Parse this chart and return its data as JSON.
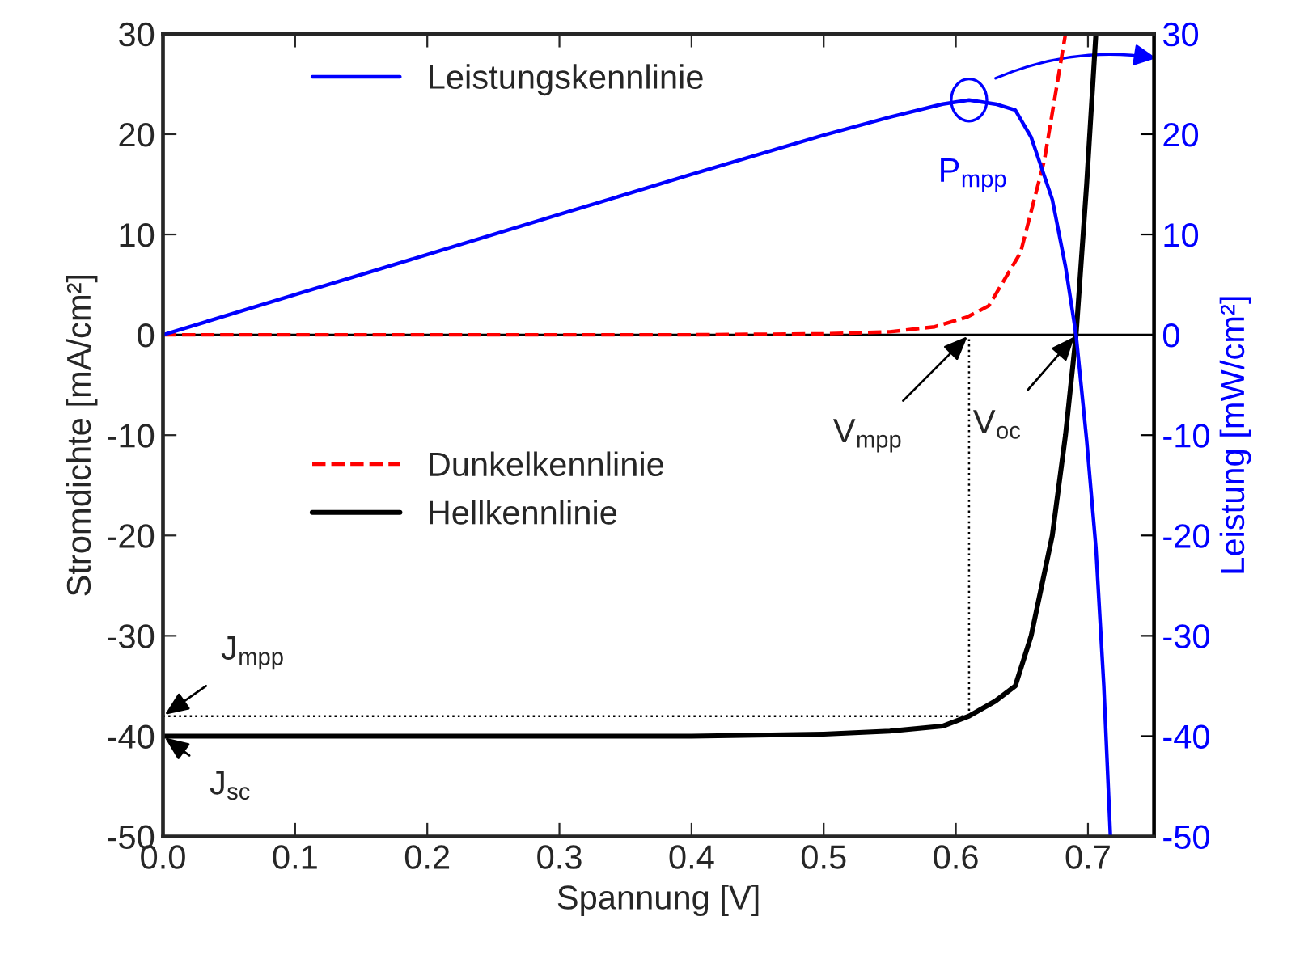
{
  "chart_data": {
    "type": "line",
    "xlabel": "Spannung [V]",
    "ylabel": "Stromdichte [mA/cm²]",
    "y2label": "Leistung [mW/cm²]",
    "series": [
      {
        "name": "Dunkelkennlinie",
        "color": "#ff0000",
        "line_style": "dashed",
        "x": [
          0.0,
          0.1,
          0.2,
          0.3,
          0.4,
          0.5,
          0.55,
          0.584,
          0.609,
          0.625,
          0.649,
          0.667,
          0.683
        ],
        "values": [
          0,
          0,
          0,
          0,
          0,
          0.1,
          0.3,
          0.8,
          1.8,
          2.9,
          8.2,
          17.4,
          30
        ]
      },
      {
        "name": "Hellkennlinie",
        "color": "#000000",
        "line_style": "solid",
        "x": [
          0.0,
          0.1,
          0.2,
          0.3,
          0.4,
          0.5,
          0.55,
          0.59,
          0.61,
          0.63,
          0.645,
          0.657,
          0.673,
          0.683,
          0.691,
          0.699,
          0.706
        ],
        "values": [
          -40,
          -40,
          -40,
          -40,
          -40,
          -39.8,
          -39.5,
          -39,
          -38,
          -36.5,
          -35,
          -30,
          -20,
          -10,
          0,
          15,
          30
        ]
      },
      {
        "name": "Leistungskennlinie",
        "color": "#0000ff",
        "line_style": "solid",
        "axis": "y2",
        "x": [
          0.0,
          0.1,
          0.2,
          0.3,
          0.4,
          0.5,
          0.55,
          0.59,
          0.61,
          0.63,
          0.645,
          0.657,
          0.673,
          0.683,
          0.691,
          0.699,
          0.706,
          0.712,
          0.717
        ],
        "values": [
          0,
          4,
          8,
          12,
          16,
          19.9,
          21.7,
          23,
          23.4,
          23,
          22.4,
          19.7,
          13.5,
          6.8,
          0,
          -10.5,
          -21.2,
          -35,
          -50
        ]
      }
    ],
    "xlim": [
      0,
      0.75
    ],
    "xticks": [
      {
        "value": 0,
        "label": "0.0"
      },
      0.1,
      0.2,
      0.3,
      0.4,
      0.5,
      0.6,
      0.7
    ],
    "ylim": [
      -50,
      30
    ],
    "yticks": [
      -50,
      -40,
      -30,
      -20,
      -10,
      0,
      10,
      20,
      30
    ],
    "y2lim": [
      -50,
      30
    ],
    "y2ticks": [
      -50,
      -40,
      -30,
      -20,
      -10,
      0,
      10,
      20,
      30
    ],
    "ref_lines": [
      {
        "axis": "y",
        "value": 0,
        "color": "#000000",
        "line_style": "solid"
      },
      {
        "axis": "x",
        "value": 0.61,
        "color": "#000000",
        "line_style": "dotted"
      },
      {
        "axis": "y",
        "value": -38,
        "color": "#000000",
        "line_style": "dotted"
      }
    ],
    "annotations": [
      {
        "text": "P$_{mpp}$",
        "x": 0.61,
        "y": 23.4
      },
      {
        "text": "V$_{mpp}$",
        "x": 0.61,
        "y": 0
      },
      {
        "text": "V$_{oc}$",
        "x": 0.691,
        "y": 0
      },
      {
        "text": "J$_{mpp}$",
        "x": 0,
        "y": -38
      },
      {
        "text": "J$_{sc}$",
        "x": 0,
        "y": -40
      }
    ],
    "legend": "center left",
    "grid": false
  }
}
